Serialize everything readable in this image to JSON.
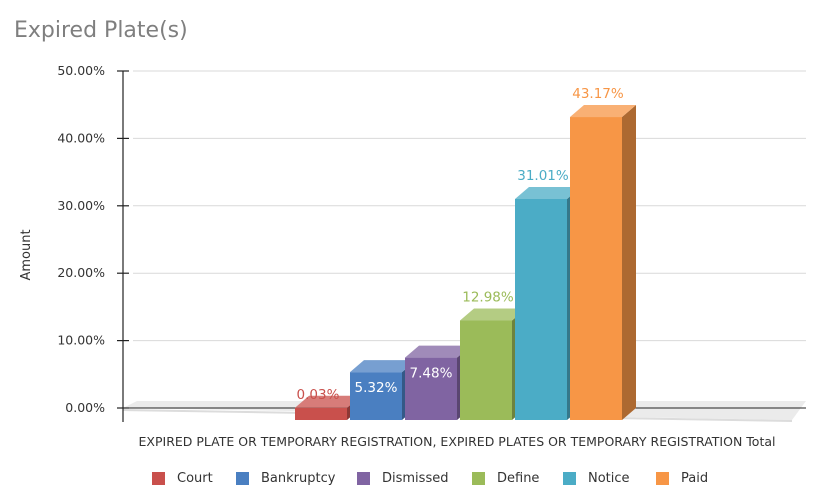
{
  "chart_data": {
    "type": "bar",
    "title": "Expired Plate(s)",
    "ylabel": "Amount",
    "xlabel": "",
    "ylim": [
      0,
      50
    ],
    "yticks": [
      "0.00%",
      "10.00%",
      "20.00%",
      "30.00%",
      "40.00%",
      "50.00%"
    ],
    "yticks_values": [
      0,
      10,
      20,
      30,
      40,
      50
    ],
    "categories": [
      "EXPIRED PLATE OR TEMPORARY REGISTRATION, EXPIRED PLATES OR TEMPORARY REGISTRATION Total"
    ],
    "grid": true,
    "legend_position": "bottom",
    "series": [
      {
        "name": "Court",
        "values": [
          0.03
        ],
        "label": "0.03%",
        "color": "#c9504c"
      },
      {
        "name": "Bankruptcy",
        "values": [
          5.32
        ],
        "label": "5.32%",
        "color": "#4a7fc1"
      },
      {
        "name": "Dismissed",
        "values": [
          7.48
        ],
        "label": "7.48%",
        "color": "#8064a2"
      },
      {
        "name": "Define",
        "values": [
          12.98
        ],
        "label": "12.98%",
        "color": "#9bbb59"
      },
      {
        "name": "Notice",
        "values": [
          31.01
        ],
        "label": "31.01%",
        "color": "#4bacc6"
      },
      {
        "name": "Paid",
        "values": [
          43.17
        ],
        "label": "43.17%",
        "color": "#f79646"
      }
    ]
  }
}
